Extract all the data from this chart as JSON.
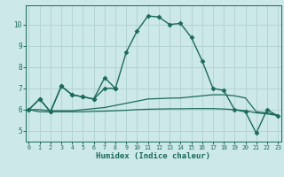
{
  "xlabel": "Humidex (Indice chaleur)",
  "bg_color": "#cce8e8",
  "grid_color": "#aacccc",
  "line_color": "#1a6b5a",
  "x_ticks": [
    0,
    1,
    2,
    3,
    4,
    5,
    6,
    7,
    8,
    9,
    10,
    11,
    12,
    13,
    14,
    15,
    16,
    17,
    18,
    19,
    20,
    21,
    22,
    23
  ],
  "y_ticks": [
    5,
    6,
    7,
    8,
    9,
    10
  ],
  "xlim": [
    -0.3,
    23.3
  ],
  "ylim": [
    4.5,
    10.9
  ],
  "series": [
    {
      "x": [
        0,
        1,
        2,
        3,
        4,
        5,
        6,
        7,
        8,
        9,
        10,
        11,
        12,
        13,
        14,
        15,
        16,
        17,
        18,
        19,
        20,
        21,
        22,
        23
      ],
      "y": [
        6.0,
        6.5,
        5.9,
        7.1,
        6.7,
        6.6,
        6.5,
        7.0,
        7.0,
        8.7,
        9.7,
        10.4,
        10.35,
        10.0,
        10.05,
        9.4,
        8.3,
        7.0,
        6.9,
        6.0,
        5.9,
        4.9,
        6.0,
        5.7
      ],
      "marker": "D",
      "markersize": 2.5,
      "linewidth": 1.0
    },
    {
      "x": [
        0,
        1,
        2,
        3,
        4,
        5,
        6,
        7,
        8
      ],
      "y": [
        6.0,
        6.5,
        5.9,
        7.1,
        6.7,
        6.6,
        6.5,
        7.5,
        7.0
      ],
      "marker": "D",
      "markersize": 2.5,
      "linewidth": 1.0
    },
    {
      "x": [
        0,
        1,
        2,
        3,
        4,
        5,
        6,
        7,
        8,
        9,
        10,
        11,
        12,
        13,
        14,
        15,
        16,
        17,
        18,
        19,
        20,
        21,
        22,
        23
      ],
      "y": [
        6.0,
        6.0,
        5.95,
        5.95,
        5.95,
        6.0,
        6.05,
        6.1,
        6.2,
        6.3,
        6.4,
        6.5,
        6.52,
        6.54,
        6.55,
        6.6,
        6.65,
        6.7,
        6.7,
        6.65,
        6.55,
        5.9,
        5.85,
        5.75
      ],
      "marker": null,
      "markersize": 0,
      "linewidth": 0.9
    },
    {
      "x": [
        0,
        1,
        2,
        3,
        4,
        5,
        6,
        7,
        8,
        9,
        10,
        11,
        12,
        13,
        14,
        15,
        16,
        17,
        18,
        19,
        20,
        21,
        22,
        23
      ],
      "y": [
        6.0,
        5.9,
        5.9,
        5.9,
        5.9,
        5.9,
        5.92,
        5.93,
        5.95,
        5.97,
        6.0,
        6.02,
        6.03,
        6.04,
        6.04,
        6.05,
        6.05,
        6.05,
        6.03,
        6.0,
        5.95,
        5.85,
        5.8,
        5.72
      ],
      "marker": null,
      "markersize": 0,
      "linewidth": 0.9
    }
  ]
}
